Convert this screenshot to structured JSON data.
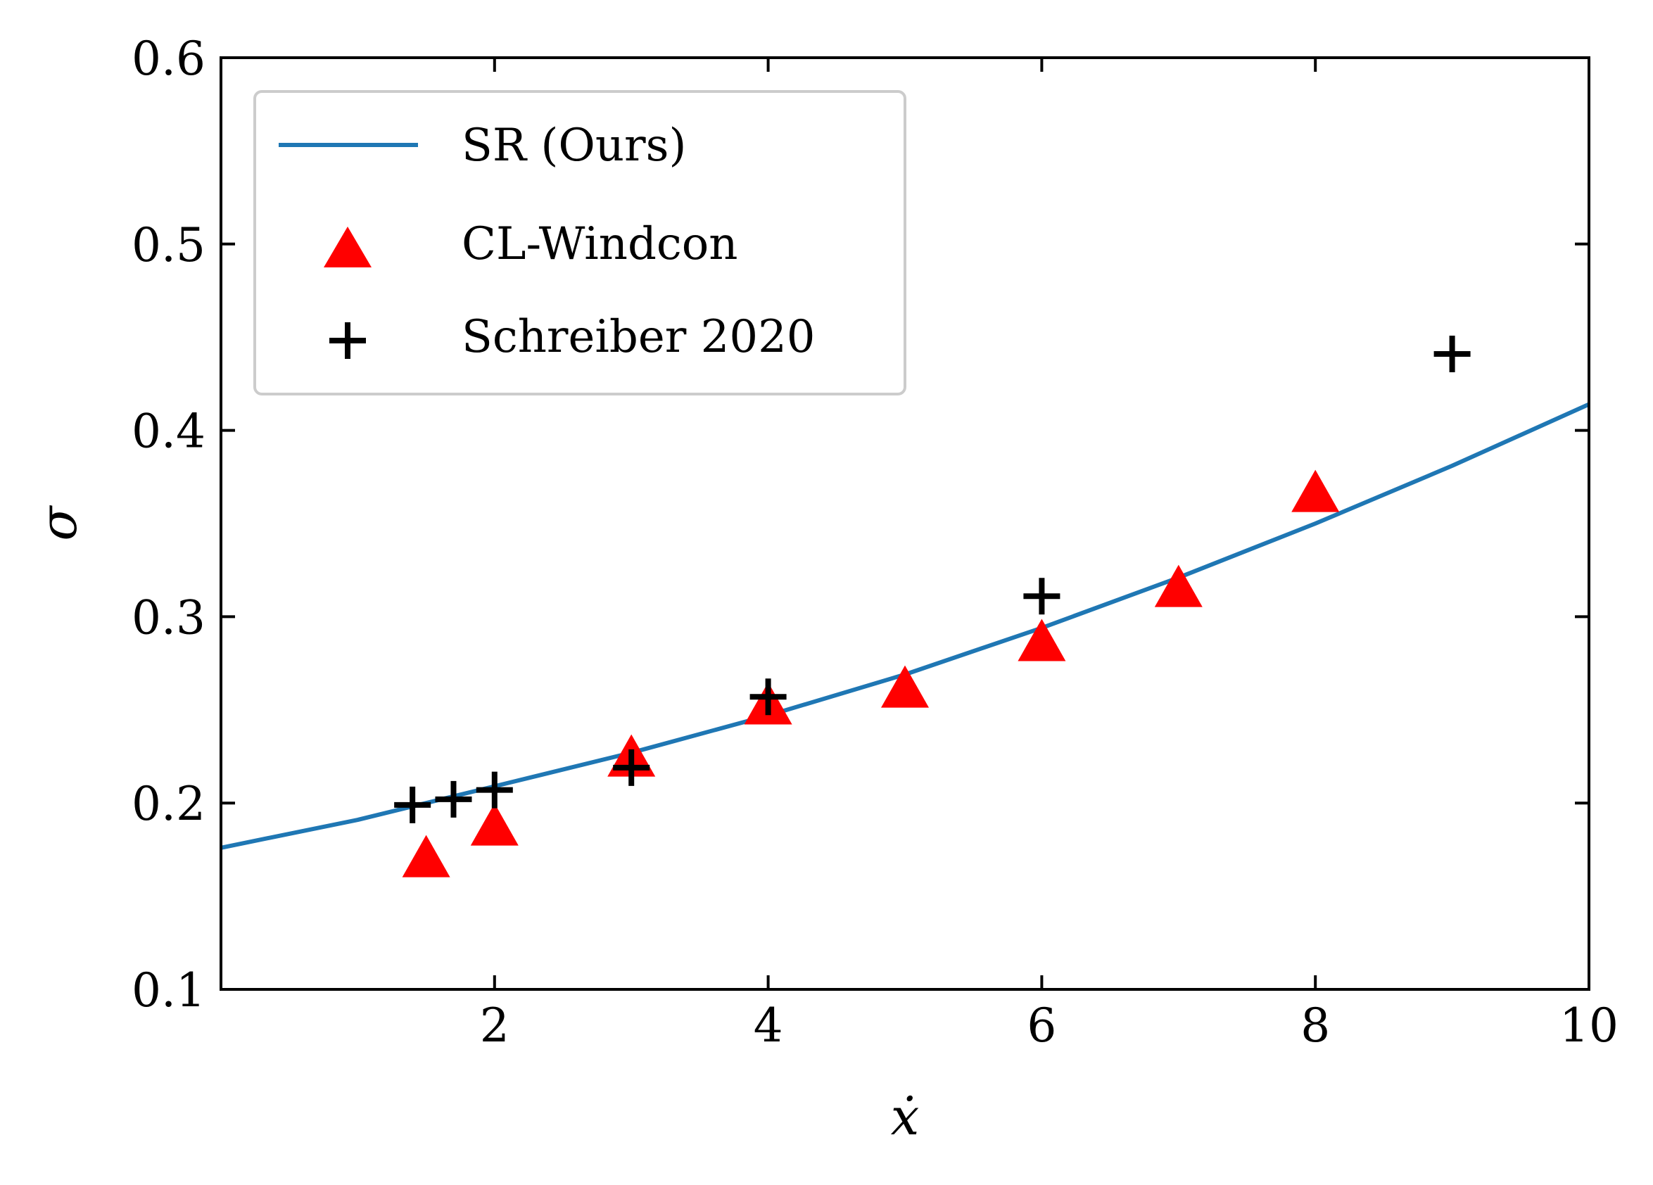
{
  "chart_data": {
    "type": "scatter",
    "title": "",
    "xlabel": "ẋ",
    "ylabel": "σ",
    "xlim": [
      0,
      10
    ],
    "ylim": [
      0.1,
      0.6
    ],
    "xticks": [
      2,
      4,
      6,
      8,
      10
    ],
    "xtick_labels": [
      "2",
      "4",
      "6",
      "8",
      "10"
    ],
    "yticks": [
      0.1,
      0.2,
      0.3,
      0.4,
      0.5,
      0.6
    ],
    "ytick_labels": [
      "0.1",
      "0.2",
      "0.3",
      "0.4",
      "0.5",
      "0.6"
    ],
    "grid": false,
    "legend_position": "top-left",
    "series": [
      {
        "name": "SR (Ours)",
        "kind": "line",
        "color": "#1f77b4",
        "x": [
          0,
          1,
          2,
          3,
          4,
          5,
          6,
          7,
          8,
          9,
          10
        ],
        "y": [
          0.176,
          0.191,
          0.209,
          0.227,
          0.247,
          0.269,
          0.294,
          0.321,
          0.35,
          0.381,
          0.414
        ]
      },
      {
        "name": "CL-Windcon",
        "kind": "scatter",
        "marker": "triangle",
        "color": "#ff0000",
        "x": [
          1.5,
          2,
          3,
          4,
          5,
          6,
          7,
          8
        ],
        "y": [
          0.17,
          0.187,
          0.224,
          0.252,
          0.261,
          0.286,
          0.315,
          0.366
        ]
      },
      {
        "name": "Schreiber 2020",
        "kind": "scatter",
        "marker": "plus",
        "color": "#000000",
        "x": [
          1.4,
          1.7,
          2.0,
          3,
          4,
          6,
          9
        ],
        "y": [
          0.199,
          0.202,
          0.207,
          0.219,
          0.257,
          0.311,
          0.441
        ]
      }
    ]
  }
}
